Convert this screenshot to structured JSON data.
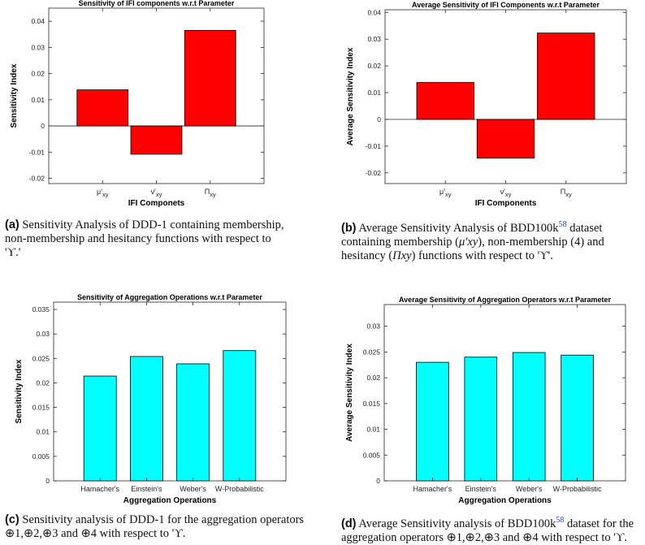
{
  "chart_data": [
    {
      "type": "bar",
      "title": "Sensitivity of IFI components w.r.t Parameter",
      "xlabel": "IFI Componets",
      "ylabel": "Sensitivity Index",
      "categories": [
        "μ'xy",
        "ν'xy",
        "Πxy"
      ],
      "values": [
        0.0138,
        -0.0108,
        0.0365
      ],
      "ylim": [
        -0.022,
        0.045
      ],
      "yticks": [
        -0.02,
        -0.01,
        0,
        0.01,
        0.02,
        0.03,
        0.04
      ],
      "yticklabels": [
        "-0.02",
        "-0.01",
        "0",
        "0.01",
        "0.02",
        "0.03",
        "0.04"
      ],
      "bar_color": "#ff0000",
      "zero_line": true
    },
    {
      "type": "bar",
      "title": "Average Sensitivity of IFI Components w.r.t Parameter",
      "xlabel": "IFI Components",
      "ylabel": "Average Sensitivity Index",
      "categories": [
        "μ'xy",
        "ν'xy",
        "Πxy"
      ],
      "values": [
        0.0138,
        -0.0145,
        0.0323
      ],
      "ylim": [
        -0.024,
        0.041
      ],
      "yticks": [
        -0.02,
        -0.01,
        0,
        0.01,
        0.02,
        0.03,
        0.04
      ],
      "yticklabels": [
        "-0.02",
        "-0.01",
        "0",
        "0.01",
        "0.02",
        "0.03",
        "0.04"
      ],
      "bar_color": "#ff0000",
      "zero_line": true
    },
    {
      "type": "bar",
      "title": "Sensitivity of Aggregation Operations w.r.t Parameter",
      "xlabel": "Aggregation Operations",
      "ylabel": "Sensitivity Index",
      "categories": [
        "Hamacher's",
        "Einstein's",
        "Weber's",
        "W-Probabilistic"
      ],
      "values": [
        0.0214,
        0.0254,
        0.0239,
        0.0266
      ],
      "ylim": [
        0,
        0.0365
      ],
      "yticks": [
        0,
        0.005,
        0.01,
        0.015,
        0.02,
        0.025,
        0.03,
        0.035
      ],
      "yticklabels": [
        "0",
        "0.005",
        "0.01",
        "0.015",
        "0.02",
        "0.025",
        "0.03",
        "0.035"
      ],
      "bar_color": "#00ffff",
      "zero_line": false
    },
    {
      "type": "bar",
      "title": "Average Sensitivity of Aggregation Operators w.r.t Parameter",
      "xlabel": "Aggregation Operations",
      "ylabel": "Average Sensitivity Index",
      "categories": [
        "Hamacher's",
        "Einstein's",
        "Weber's",
        "W-Probabilistic"
      ],
      "values": [
        0.023,
        0.024,
        0.0249,
        0.0244
      ],
      "ylim": [
        0,
        0.0342
      ],
      "yticks": [
        0,
        0.005,
        0.01,
        0.015,
        0.02,
        0.025,
        0.03
      ],
      "yticklabels": [
        "0",
        "0.005",
        "0.01",
        "0.015",
        "0.02",
        "0.025",
        "0.03"
      ],
      "bar_color": "#00ffff",
      "zero_line": false
    }
  ],
  "captions": {
    "a": {
      "label": "(a)",
      "line1": "Sensitivity Analysis of DDD-1 containing membership,",
      "line2": "non-membership and hesitancy functions with respect to",
      "line3": "'ϒ.'"
    },
    "b": {
      "label": "(b)",
      "line1a": "Average Sensitivity Analysis of BDD100k",
      "ref": "58",
      "line1b": " dataset",
      "line2a": "containing membership (",
      "mu": "μ′xy",
      "line2b": "), non-membership (4) and",
      "line3a": "hesitancy (",
      "pi": "Πxy",
      "line3b": ") functions with respect to 'ϒ'."
    },
    "c": {
      "label": "(c)",
      "line1": "Sensitivity analysis of DDD-1 for the aggregation operators",
      "line2": "⊕1,⊕2,⊕3 and ⊕4 with respect to 'ϒ."
    },
    "d": {
      "label": "(d)",
      "line1a": "Average Sensitivity analysis of BDD100k",
      "ref": "58",
      "line1b": " dataset for the",
      "line2": "aggregation operators ⊕1,⊕2,⊕3 and ⊕4 with respect to 'ϒ."
    }
  }
}
